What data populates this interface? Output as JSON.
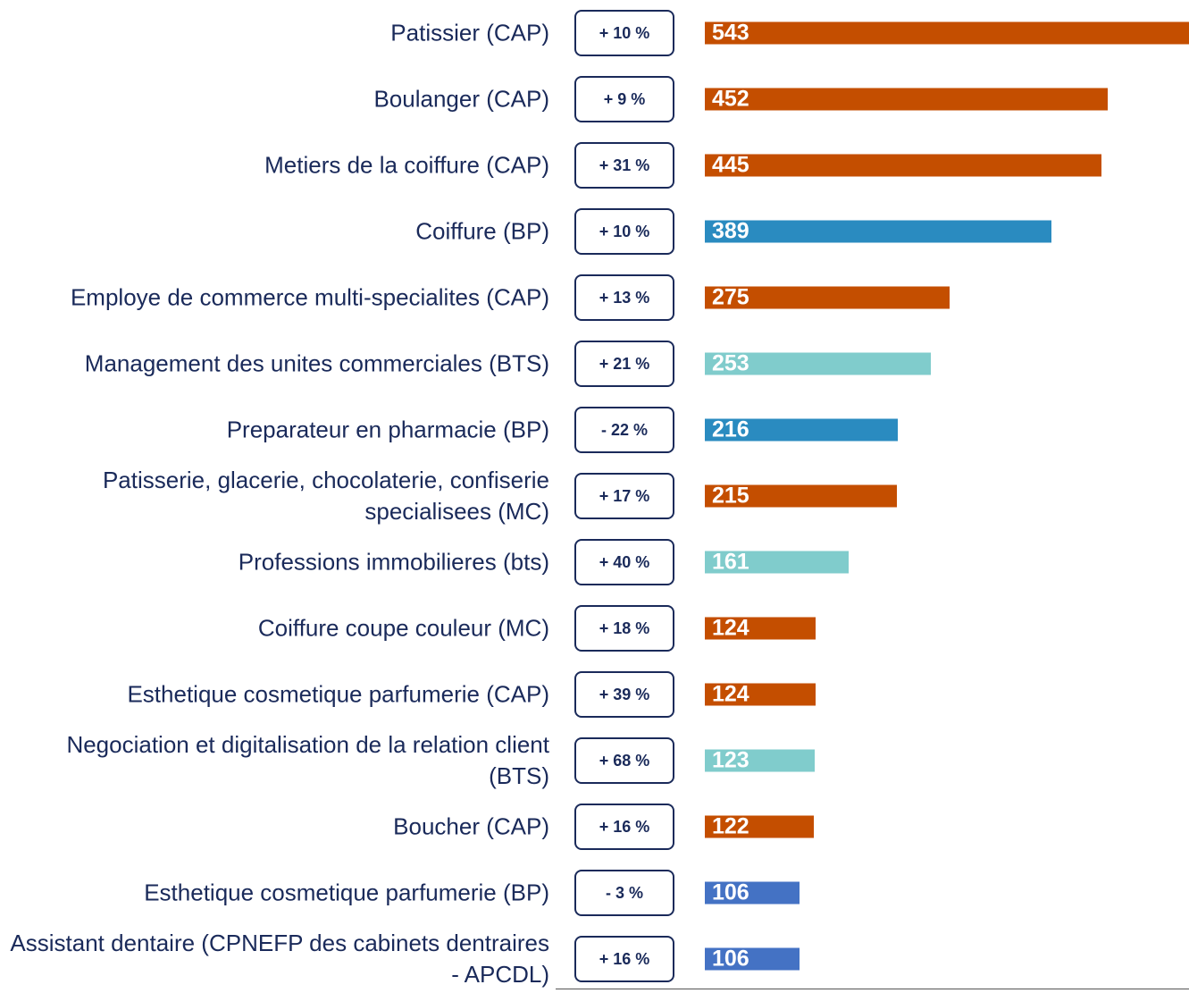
{
  "chart_data": {
    "type": "bar",
    "orientation": "horizontal",
    "categories": [
      "Patissier (CAP)",
      "Boulanger (CAP)",
      "Metiers de la coiffure (CAP)",
      "Coiffure (BP)",
      "Employe de commerce multi-specialites (CAP)",
      "Management des unites commerciales (BTS)",
      "Preparateur en pharmacie (BP)",
      "Patisserie, glacerie, chocolaterie, confiserie specialisees (MC)",
      "Professions immobilieres (bts)",
      "Coiffure coupe couleur (MC)",
      "Esthetique cosmetique parfumerie (CAP)",
      "Negociation et digitalisation de la relation client (BTS)",
      "Boucher (CAP)",
      "Esthetique cosmetique parfumerie (BP)",
      "Assistant dentaire (CPNEFP des cabinets dentraires - APCDL)"
    ],
    "values": [
      543,
      452,
      445,
      389,
      275,
      253,
      216,
      215,
      161,
      124,
      124,
      123,
      122,
      106,
      106
    ],
    "colors": [
      "#c44e00",
      "#c44e00",
      "#c44e00",
      "#2a8bc0",
      "#c44e00",
      "#80cccc",
      "#2a8bc0",
      "#c44e00",
      "#80cccc",
      "#c44e00",
      "#c44e00",
      "#80cccc",
      "#c44e00",
      "#4472c4",
      "#4472c4"
    ],
    "changes": [
      "+ 10 %",
      "+ 9 %",
      "+ 31 %",
      "+ 10 %",
      "+ 13 %",
      "+ 21 %",
      "- 22 %",
      "+ 17 %",
      "+ 40 %",
      "+ 18 %",
      "+ 39 %",
      "+ 68 %",
      "+ 16 %",
      "- 3 %",
      "+ 16 %"
    ],
    "xlim": [
      0,
      543
    ]
  }
}
